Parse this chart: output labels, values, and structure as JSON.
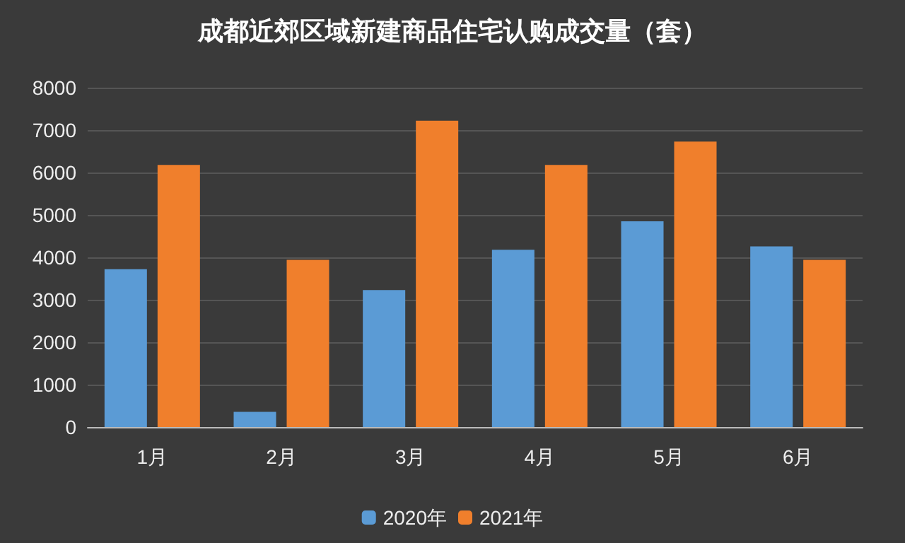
{
  "chart_data": {
    "type": "bar",
    "title": "成都近郊区域新建商品住宅认购成交量（套）",
    "categories": [
      "1月",
      "2月",
      "3月",
      "4月",
      "5月",
      "6月"
    ],
    "series": [
      {
        "name": "2020年",
        "color": "#5b9bd5",
        "values": [
          3720,
          360,
          3230,
          4180,
          4850,
          4260
        ]
      },
      {
        "name": "2021年",
        "color": "#f07f2c",
        "values": [
          6180,
          3940,
          7220,
          6180,
          6730,
          3940
        ]
      }
    ],
    "ylim": [
      0,
      8000
    ],
    "yticks": [
      0,
      1000,
      2000,
      3000,
      4000,
      5000,
      6000,
      7000,
      8000
    ],
    "grid": "y",
    "legend": "bottom"
  }
}
